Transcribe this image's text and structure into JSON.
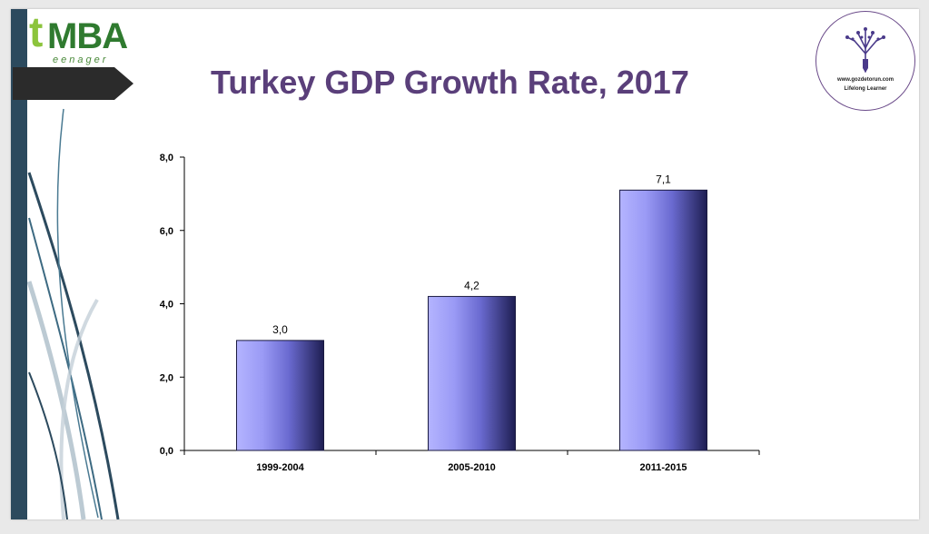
{
  "logo": {
    "mark": "t",
    "name": "MBA",
    "sub": "eenager"
  },
  "title": "Turkey GDP Growth Rate, 2017",
  "badge": {
    "url": "www.gozdetorun.com",
    "tagline": "Lifelong Learner",
    "icon": "tree-pencil-icon"
  },
  "colors": {
    "title": "#5a3f7a",
    "accent_bar": "#2c4a5e",
    "bar_light": "#9a9af5",
    "bar_dark": "#1e1e52"
  },
  "chart_data": {
    "type": "bar",
    "categories": [
      "1999-2004",
      "2005-2010",
      "2011-2015"
    ],
    "values": [
      3.0,
      4.2,
      7.1
    ],
    "value_labels": [
      "3,0",
      "4,2",
      "7,1"
    ],
    "yticks": [
      0,
      2,
      4,
      6,
      8
    ],
    "ytick_labels": [
      "0,0",
      "2,0",
      "4,0",
      "6,0",
      "8,0"
    ],
    "ylim": [
      0,
      8
    ],
    "title": "",
    "xlabel": "",
    "ylabel": "",
    "grid": false,
    "legend": false
  }
}
